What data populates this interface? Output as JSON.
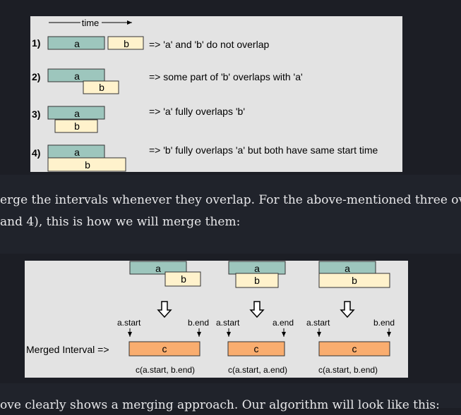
{
  "figure1": {
    "time_label": "time",
    "rows": [
      {
        "num": "1)",
        "a": "a",
        "b": "b",
        "desc": "=> 'a' and 'b' do not overlap"
      },
      {
        "num": "2)",
        "a": "a",
        "b": "b",
        "desc": "=> some part of 'b' overlaps with 'a'"
      },
      {
        "num": "3)",
        "a": "a",
        "b": "b",
        "desc": "=> 'a' fully overlaps 'b'"
      },
      {
        "num": "4)",
        "a": "a",
        "b": "b",
        "desc": "=> 'b' fully overlaps 'a' but both have same start time"
      }
    ]
  },
  "prose": {
    "line1": "erge the intervals whenever they overlap. For the above-mentioned three ov",
    "line2": "and 4), this is how we will merge them:",
    "line3": "ove clearly shows a merging approach. Our algorithm will look like this:"
  },
  "figure2": {
    "merged_label": "Merged Interval =>",
    "cases": [
      {
        "a": "a",
        "b": "b",
        "start_label": "a.start",
        "end_label": "b.end",
        "c": "c",
        "caption": "c(a.start, b.end)"
      },
      {
        "a": "a",
        "b": "b",
        "start_label": "a.start",
        "end_label": "a.end",
        "c": "c",
        "caption": "c(a.start, a.end)"
      },
      {
        "a": "a",
        "b": "b",
        "start_label": "a.start",
        "end_label": "b.end",
        "c": "c",
        "caption": "c(a.start, b.end)"
      }
    ]
  },
  "colors": {
    "a_fill": "#9dc6bd",
    "b_fill": "#fff2cc",
    "c_fill": "#f9ad6f",
    "figure_bg": "#e3e3e3",
    "page_bg": "#1c1e25"
  }
}
